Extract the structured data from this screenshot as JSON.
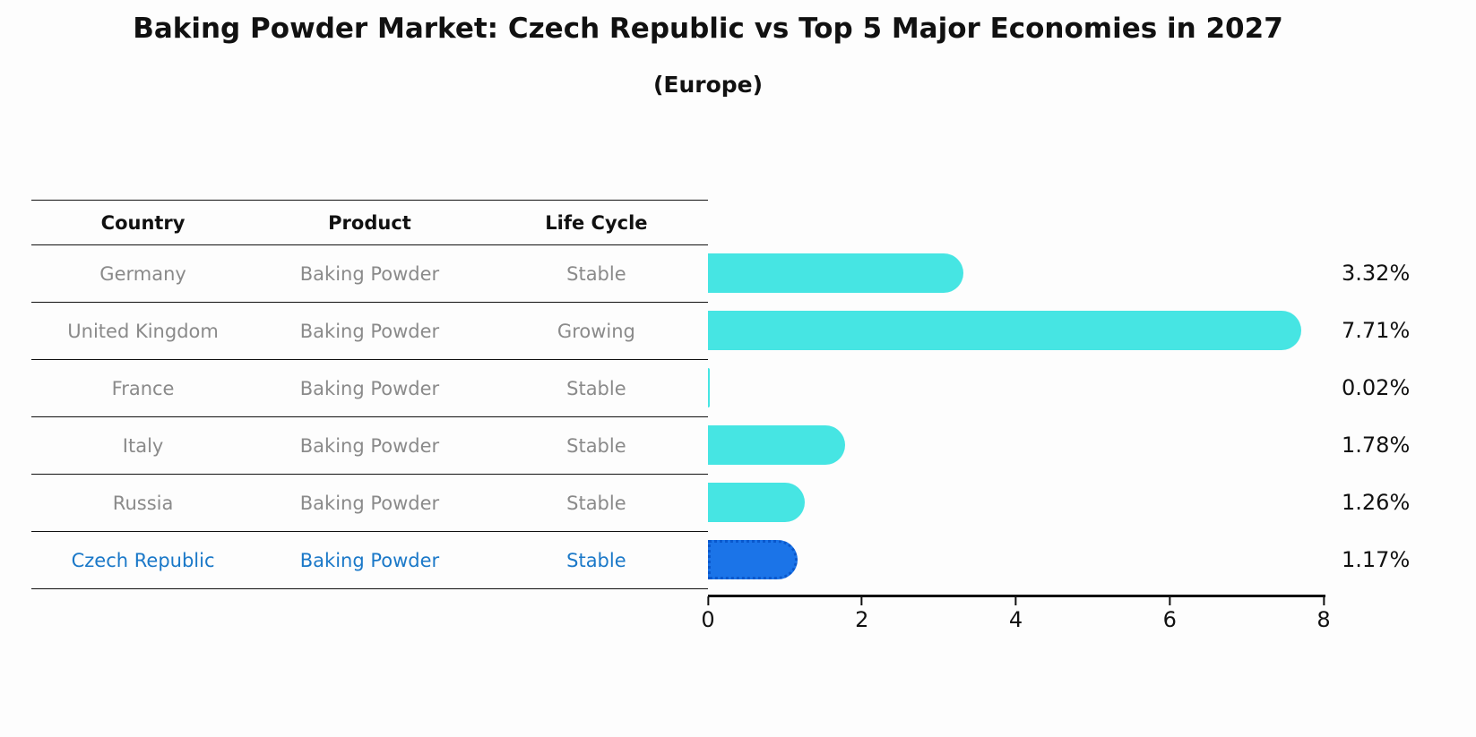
{
  "title": "Baking Powder Market: Czech Republic vs Top 5 Major Economies in 2027",
  "subtitle": "(Europe)",
  "table": {
    "headers": [
      "Country",
      "Product",
      "Life Cycle"
    ],
    "rows": [
      {
        "country": "Germany",
        "product": "Baking Powder",
        "life_cycle": "Stable",
        "highlight": false
      },
      {
        "country": "United Kingdom",
        "product": "Baking Powder",
        "life_cycle": "Growing",
        "highlight": false
      },
      {
        "country": "France",
        "product": "Baking Powder",
        "life_cycle": "Stable",
        "highlight": false
      },
      {
        "country": "Italy",
        "product": "Baking Powder",
        "life_cycle": "Stable",
        "highlight": false
      },
      {
        "country": "Russia",
        "product": "Baking Powder",
        "life_cycle": "Stable",
        "highlight": false
      },
      {
        "country": "Czech Republic",
        "product": "Baking Powder",
        "life_cycle": "Stable",
        "highlight": true
      }
    ]
  },
  "chart_data": {
    "type": "bar",
    "orientation": "horizontal",
    "title": "Baking Powder Market: Czech Republic vs Top 5 Major Economies in 2027 (Europe)",
    "categories": [
      "Germany",
      "United Kingdom",
      "France",
      "Italy",
      "Russia",
      "Czech Republic"
    ],
    "values": [
      3.32,
      7.71,
      0.02,
      1.78,
      1.26,
      1.17
    ],
    "value_labels": [
      "3.32%",
      "7.71%",
      "0.02%",
      "1.78%",
      "1.26%",
      "1.17%"
    ],
    "xlim": [
      0,
      8
    ],
    "x_ticks": [
      "0",
      "2",
      "4",
      "6",
      "8"
    ],
    "grid": "off",
    "legend": "none",
    "highlight_index": 5
  },
  "colors": {
    "bar": "#46e5e3",
    "highlight_bar": "#1b74e8",
    "highlight_border": "#0a58cc",
    "highlight_text": "#1a78c8",
    "table_text": "#8a8a8a",
    "text": "#111111"
  }
}
